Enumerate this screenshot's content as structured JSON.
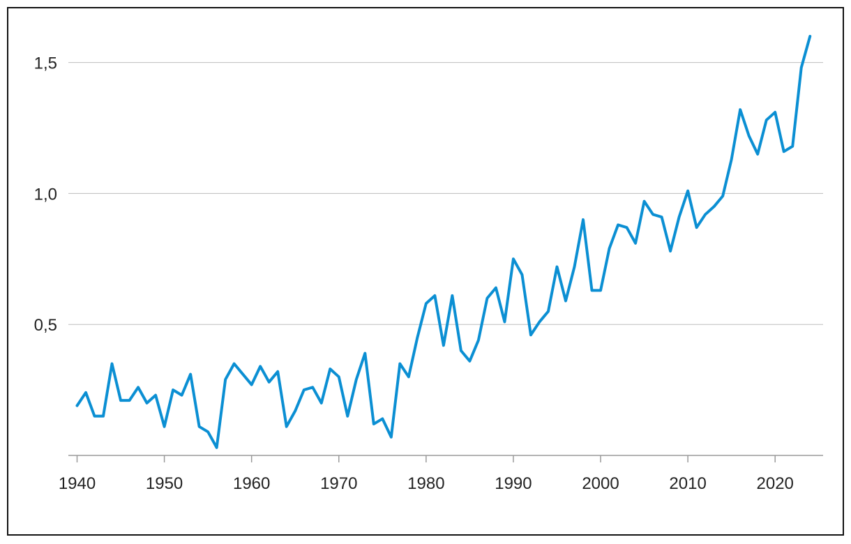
{
  "chart_data": {
    "type": "line",
    "title": "",
    "xlabel": "",
    "ylabel": "",
    "xlim": [
      1939,
      2025.5
    ],
    "ylim": [
      0,
      1.6
    ],
    "grid": "horizontal",
    "y_ticks": [
      {
        "value": 0.5,
        "label": "0,5"
      },
      {
        "value": 1.0,
        "label": "1,0"
      },
      {
        "value": 1.5,
        "label": "1,5"
      }
    ],
    "x_ticks": [
      {
        "value": 1940,
        "label": "1940"
      },
      {
        "value": 1950,
        "label": "1950"
      },
      {
        "value": 1960,
        "label": "1960"
      },
      {
        "value": 1970,
        "label": "1970"
      },
      {
        "value": 1980,
        "label": "1980"
      },
      {
        "value": 1990,
        "label": "1990"
      },
      {
        "value": 2000,
        "label": "2000"
      },
      {
        "value": 2010,
        "label": "2010"
      },
      {
        "value": 2020,
        "label": "2020"
      }
    ],
    "series": [
      {
        "color": "#0b8fd3",
        "x": [
          1940,
          1941,
          1942,
          1943,
          1944,
          1945,
          1946,
          1947,
          1948,
          1949,
          1950,
          1951,
          1952,
          1953,
          1954,
          1955,
          1956,
          1957,
          1958,
          1959,
          1960,
          1961,
          1962,
          1963,
          1964,
          1965,
          1966,
          1967,
          1968,
          1969,
          1970,
          1971,
          1972,
          1973,
          1974,
          1975,
          1976,
          1977,
          1978,
          1979,
          1980,
          1981,
          1982,
          1983,
          1984,
          1985,
          1986,
          1987,
          1988,
          1989,
          1990,
          1991,
          1992,
          1993,
          1994,
          1995,
          1996,
          1997,
          1998,
          1999,
          2000,
          2001,
          2002,
          2003,
          2004,
          2005,
          2006,
          2007,
          2008,
          2009,
          2010,
          2011,
          2012,
          2013,
          2014,
          2015,
          2016,
          2017,
          2018,
          2019,
          2020,
          2021,
          2022,
          2023,
          2024
        ],
        "values": [
          0.19,
          0.24,
          0.15,
          0.15,
          0.35,
          0.21,
          0.21,
          0.26,
          0.2,
          0.23,
          0.11,
          0.25,
          0.23,
          0.31,
          0.11,
          0.09,
          0.03,
          0.29,
          0.35,
          0.31,
          0.27,
          0.34,
          0.28,
          0.32,
          0.11,
          0.17,
          0.25,
          0.26,
          0.2,
          0.33,
          0.3,
          0.15,
          0.29,
          0.39,
          0.12,
          0.14,
          0.07,
          0.35,
          0.3,
          0.45,
          0.58,
          0.61,
          0.42,
          0.61,
          0.4,
          0.36,
          0.44,
          0.6,
          0.64,
          0.51,
          0.75,
          0.69,
          0.46,
          0.51,
          0.55,
          0.72,
          0.59,
          0.72,
          0.9,
          0.63,
          0.63,
          0.79,
          0.88,
          0.87,
          0.81,
          0.97,
          0.92,
          0.91,
          0.78,
          0.91,
          1.01,
          0.87,
          0.92,
          0.95,
          0.99,
          1.13,
          1.32,
          1.22,
          1.15,
          1.28,
          1.31,
          1.16,
          1.18,
          1.48,
          1.6
        ]
      }
    ]
  }
}
